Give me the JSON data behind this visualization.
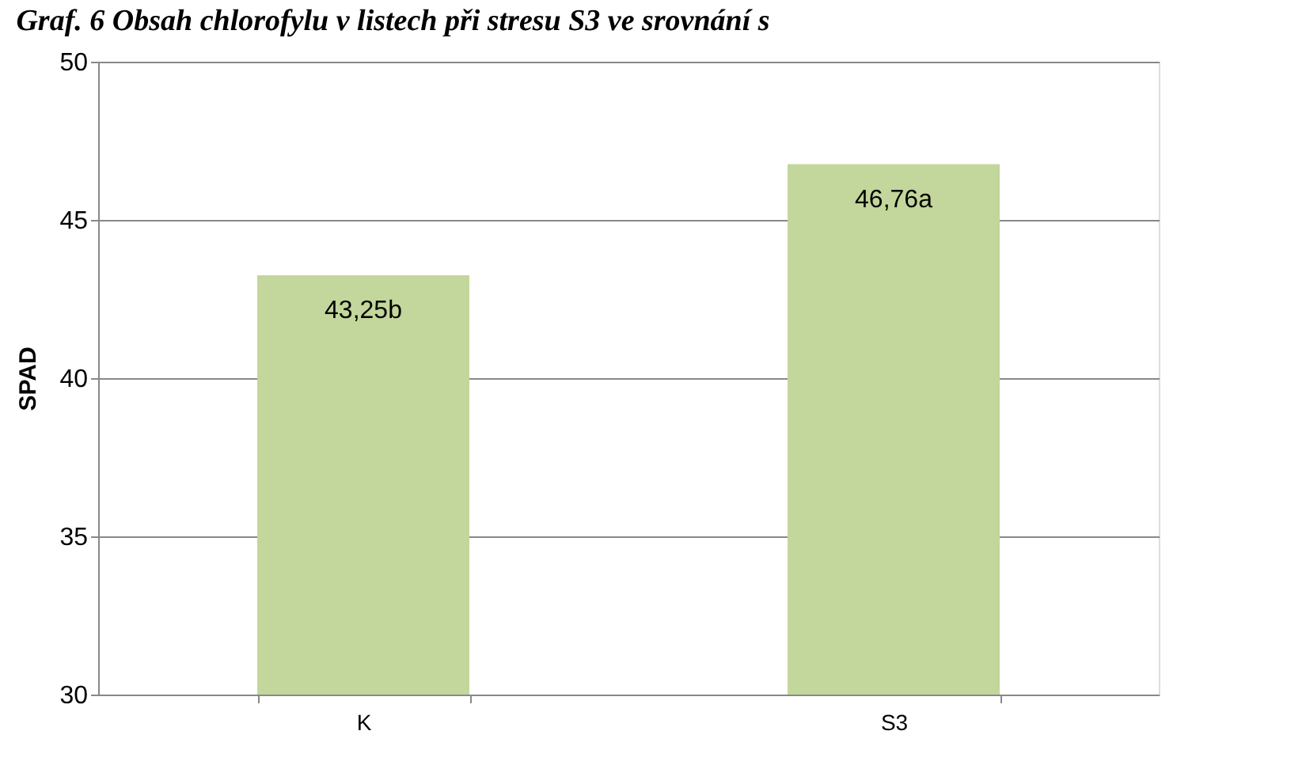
{
  "chart_data": {
    "type": "bar",
    "title": "Graf. 6 Obsah chlorofylu v listech při stresu S3 ve srovnání s",
    "ylabel": "SPAD",
    "categories": [
      "K",
      "S3"
    ],
    "values": [
      43.25,
      46.76
    ],
    "color": "#c3d69b",
    "value_labels": [
      "43,25b",
      "46,76a"
    ],
    "ylim": [
      30,
      50
    ],
    "yticks": [
      30,
      35,
      40,
      45,
      50
    ],
    "grid": "y"
  }
}
